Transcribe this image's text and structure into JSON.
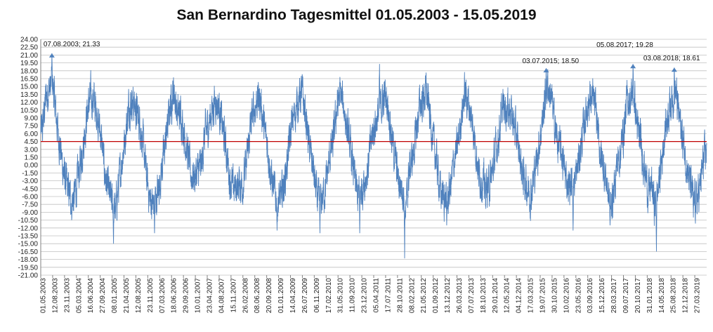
{
  "chart_data": {
    "type": "line",
    "title": "San Bernardino Tagesmittel 01.05.2003  - 15.05.2019",
    "xlabel": "",
    "ylabel": "",
    "ylim": [
      -21.0,
      24.0
    ],
    "y_tick_step": 1.5,
    "grid": true,
    "legend": "none",
    "colors": {
      "series": "#4f81bd",
      "reference": "#c00000",
      "grid": "#c0c0c0"
    },
    "x_tick_labels": [
      "01.05.2003",
      "12.08.2003",
      "23.11.2003",
      "05.03.2004",
      "16.06.2004",
      "27.09.2004",
      "08.01.2005",
      "21.04.2005",
      "12.08.2005",
      "23.11.2005",
      "07.03.2006",
      "18.06.2006",
      "29.09.2006",
      "10.01.2007",
      "23.04.2007",
      "04.08.2007",
      "15.11.2007",
      "26.02.2008",
      "08.06.2008",
      "20.09.2008",
      "01.01.2009",
      "14.04.2009",
      "26.07.2009",
      "06.11.2009",
      "17.02.2010",
      "31.05.2010",
      "11.09.2010",
      "23.12.2010",
      "05.04.2011",
      "17.07.2011",
      "28.10.2011",
      "08.02.2012",
      "21.05.2012",
      "01.09.2012",
      "13.12.2012",
      "26.03.2013",
      "07.07.2013",
      "18.10.2013",
      "29.01.2014",
      "12.05.2014",
      "04.12.2014",
      "17.03.2015",
      "19.07.2015",
      "30.10.2015",
      "10.02.2016",
      "23.05.2016",
      "03.09.2016",
      "15.12.2016",
      "28.03.2017",
      "09.07.2017",
      "20.10.2017",
      "31.01.2018",
      "14.05.2018",
      "25.08.2018",
      "12.12.2018",
      "27.03.2019"
    ],
    "series": [
      {
        "approximate_monthly_means": {
          "x": [
            "2003-05",
            "2003-06",
            "2003-07",
            "2003-08",
            "2003-09",
            "2003-10",
            "2003-11",
            "2003-12",
            "2004-01",
            "2004-02",
            "2004-03",
            "2004-04",
            "2004-05",
            "2004-06",
            "2004-07",
            "2004-08",
            "2004-09",
            "2004-10",
            "2004-11",
            "2004-12",
            "2005-01",
            "2005-02",
            "2005-03",
            "2005-04",
            "2005-05",
            "2005-06",
            "2005-07",
            "2005-08",
            "2005-09",
            "2005-10",
            "2005-11",
            "2005-12",
            "2006-01",
            "2006-02",
            "2006-03",
            "2006-04",
            "2006-05",
            "2006-06",
            "2006-07",
            "2006-08",
            "2006-09",
            "2006-10",
            "2006-11",
            "2006-12",
            "2007-01",
            "2007-02",
            "2007-03",
            "2007-04",
            "2007-05",
            "2007-06",
            "2007-07",
            "2007-08",
            "2007-09",
            "2007-10",
            "2007-11",
            "2007-12",
            "2008-01",
            "2008-02",
            "2008-03",
            "2008-04",
            "2008-05",
            "2008-06",
            "2008-07",
            "2008-08",
            "2008-09",
            "2008-10",
            "2008-11",
            "2008-12",
            "2009-01",
            "2009-02",
            "2009-03",
            "2009-04",
            "2009-05",
            "2009-06",
            "2009-07",
            "2009-08",
            "2009-09",
            "2009-10",
            "2009-11",
            "2009-12",
            "2010-01",
            "2010-02",
            "2010-03",
            "2010-04",
            "2010-05",
            "2010-06",
            "2010-07",
            "2010-08",
            "2010-09",
            "2010-10",
            "2010-11",
            "2010-12",
            "2011-01",
            "2011-02",
            "2011-03",
            "2011-04",
            "2011-05",
            "2011-06",
            "2011-07",
            "2011-08",
            "2011-09",
            "2011-10",
            "2011-11",
            "2011-12",
            "2012-01",
            "2012-02",
            "2012-03",
            "2012-04",
            "2012-05",
            "2012-06",
            "2012-07",
            "2012-08",
            "2012-09",
            "2012-10",
            "2012-11",
            "2012-12",
            "2013-01",
            "2013-02",
            "2013-03",
            "2013-04",
            "2013-05",
            "2013-06",
            "2013-07",
            "2013-08",
            "2013-09",
            "2013-10",
            "2013-11",
            "2013-12",
            "2014-01",
            "2014-02",
            "2014-03",
            "2014-04",
            "2014-05",
            "2014-06",
            "2014-07",
            "2014-08",
            "2014-09",
            "2014-10",
            "2014-11",
            "2014-12",
            "2015-01",
            "2015-02",
            "2015-03",
            "2015-04",
            "2015-05",
            "2015-06",
            "2015-07",
            "2015-08",
            "2015-09",
            "2015-10",
            "2015-11",
            "2015-12",
            "2016-01",
            "2016-02",
            "2016-03",
            "2016-04",
            "2016-05",
            "2016-06",
            "2016-07",
            "2016-08",
            "2016-09",
            "2016-10",
            "2016-11",
            "2016-12",
            "2017-01",
            "2017-02",
            "2017-03",
            "2017-04",
            "2017-05",
            "2017-06",
            "2017-07",
            "2017-08",
            "2017-09",
            "2017-10",
            "2017-11",
            "2017-12",
            "2018-01",
            "2018-02",
            "2018-03",
            "2018-04",
            "2018-05",
            "2018-06",
            "2018-07",
            "2018-08",
            "2018-09",
            "2018-10",
            "2018-11",
            "2018-12",
            "2019-01",
            "2019-02",
            "2019-03",
            "2019-04",
            "2019-05"
          ],
          "y": [
            6.5,
            13.0,
            14.5,
            15.5,
            9.0,
            4.0,
            -1.0,
            -4.0,
            -6.0,
            -6.5,
            -3.5,
            0.5,
            5.0,
            10.5,
            13.0,
            12.0,
            9.0,
            5.0,
            -1.5,
            -5.0,
            -7.0,
            -9.0,
            -4.0,
            1.0,
            6.0,
            11.5,
            12.5,
            10.5,
            8.5,
            4.5,
            -2.0,
            -6.5,
            -7.5,
            -6.0,
            -3.0,
            1.5,
            6.5,
            11.5,
            14.5,
            9.5,
            10.0,
            6.0,
            2.0,
            -2.0,
            -2.0,
            -1.0,
            0.0,
            6.0,
            7.5,
            10.5,
            12.5,
            11.0,
            7.5,
            3.5,
            -2.0,
            -4.5,
            -4.0,
            -3.5,
            -3.5,
            0.5,
            6.5,
            10.5,
            12.5,
            12.5,
            7.0,
            4.0,
            -2.0,
            -5.0,
            -7.0,
            -6.0,
            -3.0,
            2.0,
            7.5,
            10.0,
            12.5,
            14.0,
            9.5,
            4.0,
            0.5,
            -5.0,
            -7.5,
            -6.0,
            -3.5,
            1.5,
            4.0,
            10.5,
            13.5,
            11.5,
            7.0,
            3.0,
            -1.5,
            -6.0,
            -5.0,
            -3.0,
            -1.0,
            4.5,
            7.5,
            9.5,
            11.5,
            13.5,
            11.0,
            5.0,
            1.0,
            -3.5,
            -4.0,
            -9.0,
            -1.0,
            1.5,
            6.0,
            11.5,
            12.5,
            14.0,
            9.0,
            4.0,
            0.0,
            -5.0,
            -6.0,
            -7.0,
            -4.0,
            1.0,
            3.5,
            9.0,
            13.5,
            12.5,
            8.5,
            5.0,
            -1.5,
            -3.0,
            -4.5,
            -4.0,
            -1.5,
            2.5,
            6.0,
            11.0,
            11.0,
            11.0,
            8.5,
            5.5,
            1.5,
            -2.5,
            -4.0,
            -6.0,
            -2.5,
            1.5,
            6.0,
            11.0,
            15.5,
            13.0,
            8.0,
            4.0,
            2.5,
            -1.5,
            -4.0,
            -3.5,
            -3.0,
            1.0,
            5.0,
            10.0,
            12.5,
            12.5,
            10.0,
            3.0,
            0.0,
            -3.0,
            -8.0,
            -5.5,
            0.0,
            2.5,
            6.5,
            12.5,
            12.5,
            13.5,
            6.5,
            4.0,
            -0.5,
            -5.0,
            -4.0,
            -8.0,
            -4.5,
            1.0,
            7.0,
            10.5,
            13.0,
            14.0,
            9.5,
            5.0,
            1.0,
            -3.0,
            -6.0,
            -7.0,
            -4.5,
            0.5,
            3.0
          ]
        },
        "extremes": [
          {
            "date": "2004-01-28",
            "value": -10.5
          },
          {
            "date": "2005-01-30",
            "value": -15.0
          },
          {
            "date": "2006-01-26",
            "value": -13.0
          },
          {
            "date": "2009-01-08",
            "value": -12.5
          },
          {
            "date": "2010-01-20",
            "value": -13.0
          },
          {
            "date": "2011-01-05",
            "value": -13.0
          },
          {
            "date": "2012-02-04",
            "value": -17.8
          },
          {
            "date": "2013-02-08",
            "value": -11.5
          },
          {
            "date": "2016-02-25",
            "value": -12.5
          },
          {
            "date": "2017-01-15",
            "value": -11.5
          },
          {
            "date": "2018-02-27",
            "value": -16.5
          },
          {
            "date": "2019-01-18",
            "value": -10.0
          },
          {
            "date": "2011-06-28",
            "value": 19.3
          }
        ]
      }
    ],
    "reference_line": {
      "value": 4.5
    },
    "annotations": [
      {
        "text": "07.08.2003; 21.33",
        "date": "2003-08-07",
        "value": 21.33
      },
      {
        "text": "03.07.2015; 18.50",
        "date": "2015-07-03",
        "value": 18.5
      },
      {
        "text": "05.08.2017; 19.28",
        "date": "2017-08-05",
        "value": 19.28
      },
      {
        "text": "03.08.2018; 18.61",
        "date": "2018-08-03",
        "value": 18.61
      }
    ]
  }
}
